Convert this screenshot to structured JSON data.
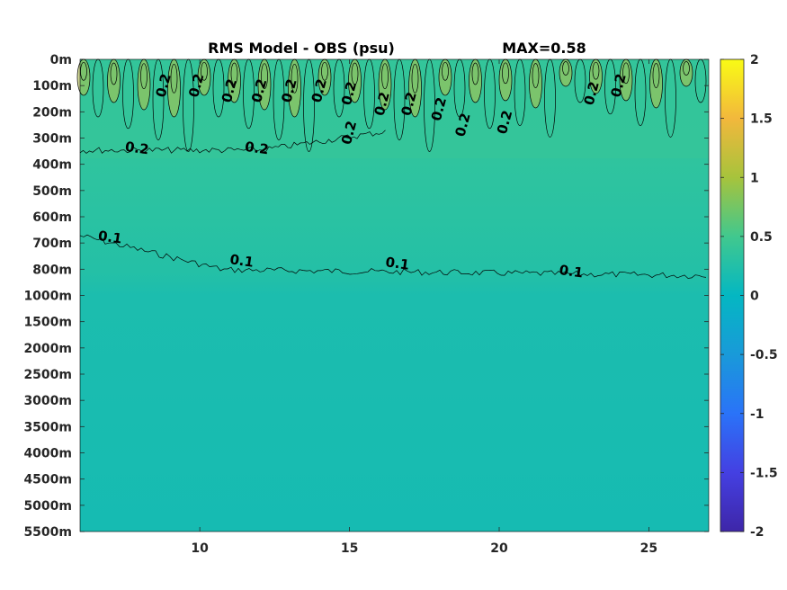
{
  "chart_data": {
    "type": "heatmap",
    "title": "RMS Model - OBS (psu)",
    "annotation": "MAX=0.58",
    "x_ticks": [
      "10",
      "15",
      "20",
      "25"
    ],
    "x_tick_values": [
      10,
      15,
      20,
      25
    ],
    "xlim": [
      6,
      27
    ],
    "y_ticks": [
      "0m",
      "100m",
      "200m",
      "300m",
      "400m",
      "500m",
      "600m",
      "700m",
      "800m",
      "1000m",
      "1500m",
      "2000m",
      "2500m",
      "3000m",
      "3500m",
      "4000m",
      "4500m",
      "5000m",
      "5500m"
    ],
    "colorbar": {
      "ticks": [
        "2",
        "1.5",
        "1",
        "0.5",
        "0",
        "-0.5",
        "-1",
        "-1.5",
        "-2"
      ],
      "tick_values": [
        2,
        1.5,
        1,
        0.5,
        0,
        -0.5,
        -1,
        -1.5,
        -2
      ],
      "range": [
        -2,
        2
      ],
      "colormap": "parula"
    },
    "contour_labels": [
      {
        "text": "0.2",
        "x": 8.8,
        "depth_index": 1.0
      },
      {
        "text": "0.2",
        "x": 9.9,
        "depth_index": 1.0
      },
      {
        "text": "0.2",
        "x": 11.0,
        "depth_index": 1.2
      },
      {
        "text": "0.2",
        "x": 12.0,
        "depth_index": 1.2
      },
      {
        "text": "0.2",
        "x": 13.0,
        "depth_index": 1.2
      },
      {
        "text": "0.2",
        "x": 14.0,
        "depth_index": 1.2
      },
      {
        "text": "0.2",
        "x": 15.0,
        "depth_index": 1.3
      },
      {
        "text": "0.2",
        "x": 16.1,
        "depth_index": 1.7
      },
      {
        "text": "0.2",
        "x": 17.0,
        "depth_index": 1.7
      },
      {
        "text": "0.2",
        "x": 18.0,
        "depth_index": 1.9
      },
      {
        "text": "0.2",
        "x": 15.0,
        "depth_index": 2.8
      },
      {
        "text": "0.2",
        "x": 18.8,
        "depth_index": 2.5
      },
      {
        "text": "0.2",
        "x": 20.2,
        "depth_index": 2.4
      },
      {
        "text": "0.2",
        "x": 23.1,
        "depth_index": 1.3
      },
      {
        "text": "0.2",
        "x": 24.0,
        "depth_index": 1.0
      },
      {
        "text": "0.2",
        "x": 7.9,
        "depth_index": 3.4
      },
      {
        "text": "0.2",
        "x": 11.9,
        "depth_index": 3.4
      },
      {
        "text": "0.1",
        "x": 7.0,
        "depth_index": 6.8
      },
      {
        "text": "0.1",
        "x": 11.4,
        "depth_index": 7.7
      },
      {
        "text": "0.1",
        "x": 16.6,
        "depth_index": 7.8
      },
      {
        "text": "0.1",
        "x": 22.4,
        "depth_index": 8.1
      }
    ]
  }
}
